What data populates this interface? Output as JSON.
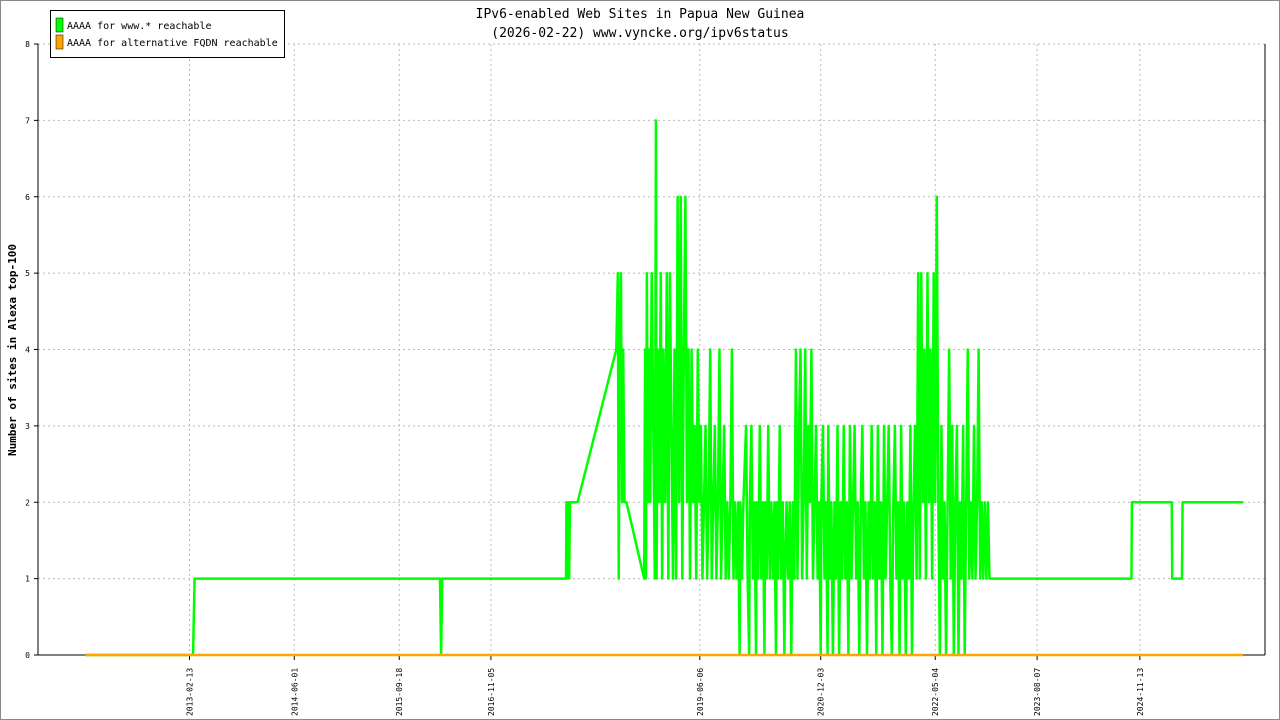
{
  "chart_data": {
    "type": "line",
    "title": "IPv6-enabled Web Sites in Papua New Guinea",
    "subtitle": "(2026-02-22) www.vyncke.org/ipv6status",
    "y_label": "Number of sites in Alexa top-100",
    "xlim": [
      "2011-04-01",
      "2026-06-01"
    ],
    "xticks": [
      "2013-02-13",
      "2014-06-01",
      "2015-09-18",
      "2016-11-05",
      "2019-06-06",
      "2020-12-03",
      "2022-05-04",
      "2023-08-07",
      "2024-11-13"
    ],
    "ylim": [
      0,
      8
    ],
    "yticks": [
      0,
      1,
      2,
      3,
      4,
      5,
      6,
      7,
      8
    ],
    "grid": true,
    "legend": "upper left",
    "series": [
      {
        "name": "AAAA for www.* reachable",
        "color": "#00ff00",
        "x": [
          "2011-11-01",
          "2013-03-01",
          "2013-03-08",
          "2016-03-20",
          "2016-03-25",
          "2016-03-30",
          "2017-10-10",
          "2017-10-12",
          "2017-10-16",
          "2017-10-20",
          "2017-10-24",
          "2017-10-28",
          "2017-12-01",
          "2018-05-25",
          "2018-06-01",
          "2018-06-05",
          "2018-06-10",
          "2018-06-15",
          "2018-06-20",
          "2018-06-25",
          "2018-07-01",
          "2018-07-10",
          "2018-09-28",
          "2018-10-02",
          "2018-10-06",
          "2018-10-10",
          "2018-10-15",
          "2018-10-20",
          "2018-10-25",
          "2018-11-01",
          "2018-11-08",
          "2018-11-15",
          "2018-11-20",
          "2018-11-23",
          "2018-11-28",
          "2018-12-05",
          "2018-12-12",
          "2018-12-18",
          "2018-12-24",
          "2019-01-01",
          "2019-01-08",
          "2019-01-15",
          "2019-01-22",
          "2019-01-29",
          "2019-02-05",
          "2019-02-12",
          "2019-02-19",
          "2019-02-26",
          "2019-03-05",
          "2019-03-12",
          "2019-03-19",
          "2019-03-26",
          "2019-04-02",
          "2019-04-09",
          "2019-04-16",
          "2019-04-23",
          "2019-04-30",
          "2019-05-07",
          "2019-05-14",
          "2019-05-21",
          "2019-05-28",
          "2019-06-04",
          "2019-06-11",
          "2019-06-18",
          "2019-06-25",
          "2019-07-02",
          "2019-07-09",
          "2019-07-16",
          "2019-07-23",
          "2019-07-30",
          "2019-08-06",
          "2019-08-13",
          "2019-08-20",
          "2019-08-27",
          "2019-09-03",
          "2019-09-10",
          "2019-09-17",
          "2019-09-24",
          "2019-10-01",
          "2019-10-08",
          "2019-10-15",
          "2019-10-22",
          "2019-10-29",
          "2019-11-05",
          "2019-11-12",
          "2019-11-19",
          "2019-11-26",
          "2019-12-03",
          "2019-12-06",
          "2019-12-13",
          "2019-12-20",
          "2020-01-01",
          "2020-01-08",
          "2020-01-15",
          "2020-01-18",
          "2020-01-25",
          "2020-02-01",
          "2020-02-08",
          "2020-02-15",
          "2020-02-18",
          "2020-02-25",
          "2020-03-03",
          "2020-03-10",
          "2020-03-17",
          "2020-03-24",
          "2020-03-27",
          "2020-04-03",
          "2020-04-10",
          "2020-04-17",
          "2020-04-24",
          "2020-05-01",
          "2020-05-08",
          "2020-05-15",
          "2020-05-18",
          "2020-05-25",
          "2020-06-01",
          "2020-06-08",
          "2020-06-15",
          "2020-06-22",
          "2020-06-25",
          "2020-07-02",
          "2020-07-09",
          "2020-07-16",
          "2020-07-23",
          "2020-07-30",
          "2020-08-06",
          "2020-08-13",
          "2020-08-20",
          "2020-08-27",
          "2020-09-03",
          "2020-09-10",
          "2020-09-17",
          "2020-09-24",
          "2020-10-01",
          "2020-10-08",
          "2020-10-15",
          "2020-10-22",
          "2020-10-29",
          "2020-11-05",
          "2020-11-12",
          "2020-11-19",
          "2020-11-26",
          "2020-12-03",
          "2020-12-06",
          "2020-12-13",
          "2020-12-20",
          "2020-12-27",
          "2021-01-03",
          "2021-01-06",
          "2021-01-13",
          "2021-01-20",
          "2021-01-27",
          "2021-02-03",
          "2021-02-10",
          "2021-02-17",
          "2021-02-24",
          "2021-03-03",
          "2021-03-10",
          "2021-03-17",
          "2021-03-24",
          "2021-03-31",
          "2021-04-07",
          "2021-04-14",
          "2021-04-21",
          "2021-04-28",
          "2021-05-05",
          "2021-05-12",
          "2021-05-19",
          "2021-05-26",
          "2021-06-02",
          "2021-06-09",
          "2021-06-16",
          "2021-06-23",
          "2021-06-30",
          "2021-07-07",
          "2021-07-14",
          "2021-07-21",
          "2021-07-28",
          "2021-08-04",
          "2021-08-11",
          "2021-08-18",
          "2021-08-25",
          "2021-09-01",
          "2021-09-08",
          "2021-09-15",
          "2021-09-22",
          "2021-09-29",
          "2021-10-06",
          "2021-10-13",
          "2021-10-20",
          "2021-10-27",
          "2021-11-03",
          "2021-11-10",
          "2021-11-17",
          "2021-11-24",
          "2021-12-01",
          "2021-12-08",
          "2021-12-15",
          "2021-12-22",
          "2021-12-29",
          "2022-01-05",
          "2022-01-12",
          "2022-01-19",
          "2022-01-26",
          "2022-02-02",
          "2022-02-09",
          "2022-02-16",
          "2022-02-23",
          "2022-03-02",
          "2022-03-09",
          "2022-03-16",
          "2022-03-23",
          "2022-03-30",
          "2022-04-06",
          "2022-04-13",
          "2022-04-20",
          "2022-04-27",
          "2022-05-04",
          "2022-05-11",
          "2022-05-18",
          "2022-05-25",
          "2022-06-01",
          "2022-06-08",
          "2022-06-15",
          "2022-06-22",
          "2022-06-29",
          "2022-07-06",
          "2022-07-13",
          "2022-07-20",
          "2022-07-27",
          "2022-08-03",
          "2022-08-10",
          "2022-08-17",
          "2022-08-24",
          "2022-08-31",
          "2022-09-07",
          "2022-09-14",
          "2022-09-21",
          "2022-09-28",
          "2022-10-05",
          "2022-10-12",
          "2022-10-19",
          "2022-10-26",
          "2022-11-02",
          "2022-11-09",
          "2022-11-16",
          "2022-11-23",
          "2022-11-30",
          "2022-12-07",
          "2022-12-14",
          "2022-12-21",
          "2022-12-28",
          "2023-01-04",
          "2024-10-06",
          "2024-10-08",
          "2025-04-06",
          "2025-04-08",
          "2025-05-22",
          "2025-05-25",
          "2026-02-22"
        ],
        "values": [
          0,
          0,
          1,
          1,
          0,
          1,
          1,
          2,
          1,
          2,
          1,
          2,
          2,
          4,
          5,
          1,
          4,
          5,
          2,
          4,
          2,
          2,
          1,
          4,
          1,
          5,
          2,
          4,
          2,
          5,
          3,
          1,
          7,
          1,
          4,
          2,
          5,
          1,
          4,
          2,
          5,
          1,
          5,
          3,
          1,
          4,
          1,
          6,
          2,
          6,
          1,
          4,
          6,
          2,
          4,
          1,
          4,
          2,
          3,
          1,
          4,
          2,
          3,
          1,
          2,
          3,
          1,
          2,
          4,
          1,
          2,
          3,
          1,
          2,
          4,
          1,
          2,
          3,
          1,
          2,
          1,
          2,
          4,
          1,
          2,
          1,
          2,
          0,
          2,
          1,
          2,
          3,
          1,
          0,
          2,
          3,
          1,
          2,
          0,
          2,
          1,
          3,
          1,
          2,
          0,
          2,
          1,
          3,
          1,
          2,
          1,
          2,
          0,
          2,
          1,
          3,
          1,
          2,
          0,
          1,
          2,
          1,
          2,
          0,
          2,
          1,
          4,
          1,
          3,
          4,
          1,
          2,
          4,
          1,
          3,
          2,
          4,
          1,
          2,
          3,
          1,
          2,
          0,
          2,
          3,
          1,
          2,
          0,
          3,
          1,
          2,
          0,
          2,
          1,
          3,
          0,
          2,
          1,
          3,
          1,
          2,
          0,
          3,
          1,
          2,
          3,
          1,
          2,
          0,
          2,
          3,
          1,
          2,
          0,
          2,
          1,
          3,
          1,
          2,
          0,
          3,
          1,
          2,
          0,
          3,
          1,
          2,
          3,
          1,
          0,
          2,
          3,
          1,
          2,
          0,
          3,
          1,
          2,
          0,
          2,
          1,
          3,
          0,
          2,
          3,
          1,
          5,
          1,
          5,
          2,
          4,
          1,
          5,
          2,
          4,
          1,
          5,
          2,
          6,
          2,
          0,
          3,
          1,
          2,
          0,
          2,
          4,
          1,
          3,
          0,
          2,
          3,
          0,
          2,
          1,
          3,
          0,
          2,
          4,
          1,
          2,
          1,
          3,
          1,
          2,
          4,
          1,
          2,
          1,
          2,
          1,
          2,
          1,
          1,
          2,
          2,
          1,
          1,
          2,
          2
        ]
      },
      {
        "name": "AAAA for alternative FQDN reachable",
        "color": "#ffa500",
        "x": [
          "2011-11-01",
          "2026-02-22"
        ],
        "values": [
          0,
          0
        ]
      }
    ]
  }
}
